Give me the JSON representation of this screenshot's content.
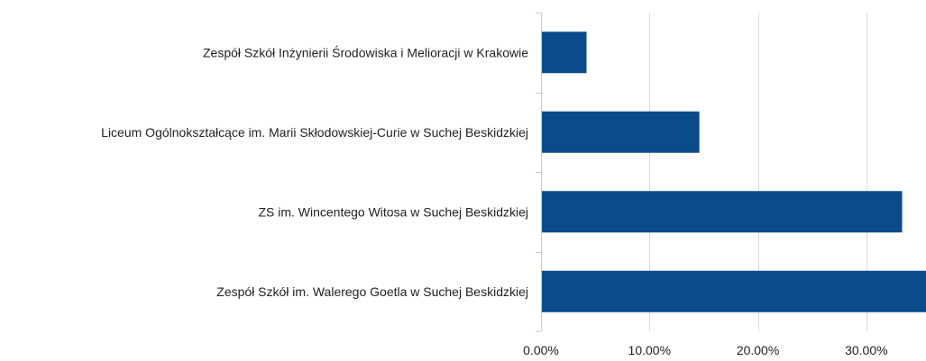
{
  "chart_data": {
    "type": "bar",
    "orientation": "horizontal",
    "categories": [
      "Zespół Szkół Inżynierii Środowiska i Melioracji w Krakowie",
      "Liceum Ogólnokształcące im. Marii Skłodowskiej-Curie w Suchej Beskidzkiej",
      "ZS im. Wincentego Witosa w Suchej Beskidzkiej",
      "Zespół Szkół im. Walerego Goetla w Suchej Beskidzkiej"
    ],
    "values": [
      4.2,
      14.6,
      33.3,
      35.5
    ],
    "xlim": [
      0,
      35.5
    ],
    "x_ticks": [
      0,
      10,
      20,
      30
    ],
    "x_tick_labels": [
      "0.00%",
      "10.00%",
      "20.00%",
      "30.00%"
    ],
    "title": "",
    "xlabel": "",
    "ylabel": "",
    "grid": true,
    "legend": "none",
    "bar_color": "#0b4a8b"
  }
}
